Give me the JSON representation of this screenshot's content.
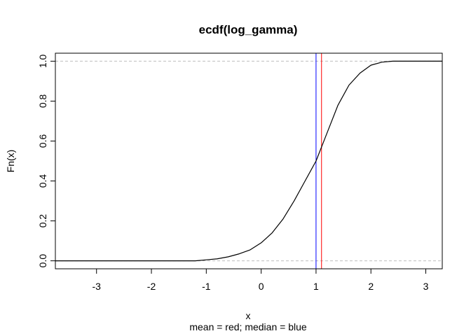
{
  "chart_data": {
    "type": "line",
    "title": "ecdf(log_gamma)",
    "xlabel": "x",
    "ylabel": "Fn(x)",
    "subtitle": "mean = red; median = blue",
    "xlim": [
      -3.75,
      3.3
    ],
    "ylim": [
      -0.04,
      1.04
    ],
    "x_ticks": [
      -3,
      -2,
      -1,
      0,
      1,
      2,
      3
    ],
    "x_tick_labels": [
      "-3",
      "-2",
      "-1",
      "0",
      "1",
      "2",
      "3"
    ],
    "y_ticks": [
      0.0,
      0.2,
      0.4,
      0.6,
      0.8,
      1.0
    ],
    "y_tick_labels": [
      "0.0",
      "0.2",
      "0.4",
      "0.6",
      "0.8",
      "1.0"
    ],
    "grid": false,
    "reference_lines": [
      {
        "type": "horizontal",
        "y": 0,
        "style": "dashed",
        "color": "#bebebe"
      },
      {
        "type": "horizontal",
        "y": 1,
        "style": "dashed",
        "color": "#bebebe"
      },
      {
        "type": "vertical",
        "x": 1.1,
        "label": "mean",
        "color": "#ff0000"
      },
      {
        "type": "vertical",
        "x": 1.0,
        "label": "median",
        "color": "#0000ff"
      }
    ],
    "series": [
      {
        "color": "#000000",
        "x": [
          -3.75,
          -1.2,
          -1.0,
          -0.8,
          -0.6,
          -0.4,
          -0.2,
          0.0,
          0.2,
          0.4,
          0.6,
          0.8,
          1.0,
          1.2,
          1.4,
          1.6,
          1.8,
          2.0,
          2.2,
          2.4,
          2.6,
          3.3
        ],
        "y": [
          0.0,
          0.0,
          0.005,
          0.01,
          0.02,
          0.035,
          0.055,
          0.09,
          0.14,
          0.21,
          0.3,
          0.4,
          0.5,
          0.64,
          0.78,
          0.88,
          0.94,
          0.98,
          0.995,
          1.0,
          1.0,
          1.0
        ]
      }
    ]
  }
}
